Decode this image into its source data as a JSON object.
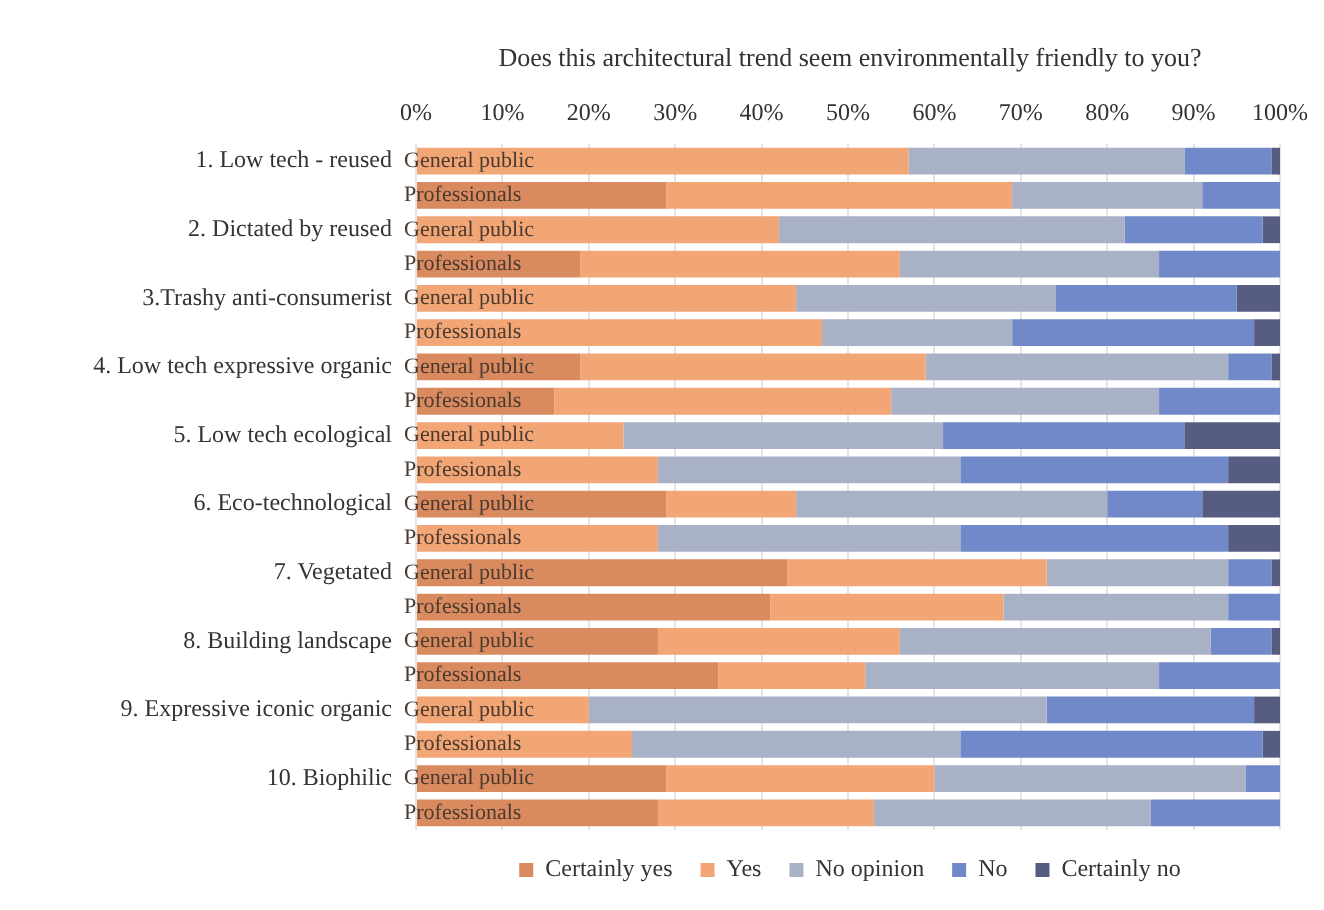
{
  "chart_data": {
    "type": "bar",
    "orientation": "horizontal",
    "stacked": true,
    "title": "Does this architectural trend seem environmentally friendly to you?",
    "categories": [
      "General public",
      "Professionals",
      "General public",
      "Professionals",
      "General public",
      "Professionals",
      "General public",
      "Professionals",
      "General public",
      "Professionals",
      "General public",
      "Professionals",
      "General public",
      "Professionals",
      "General public",
      "Professionals",
      "General public",
      "Professionals",
      "General public",
      "Professionals"
    ],
    "annotations": [
      "1. Low tech - reused",
      "2. Dictated by reused",
      "3.Trashy anti-consumerist",
      "4. Low tech expressive organic",
      "5. Low tech ecological",
      "6. Eco-technological",
      "7. Vegetated",
      "8. Building landscape",
      "9. Expressive iconic organic",
      "10. Biophilic"
    ],
    "series": [
      {
        "name": "Certainly yes",
        "color": "#d98b5f",
        "values": [
          0,
          29,
          0,
          19,
          0,
          0,
          19,
          16,
          0,
          0,
          29,
          0,
          43,
          41,
          28,
          35,
          0,
          0,
          29,
          28
        ]
      },
      {
        "name": "Yes",
        "color": "#f2a675",
        "values": [
          57,
          40,
          42,
          37,
          44,
          47,
          40,
          39,
          24,
          28,
          15,
          28,
          30,
          27,
          28,
          17,
          20,
          25,
          31,
          25
        ]
      },
      {
        "name": "No opinion",
        "color": "#a9b1c6",
        "values": [
          32,
          22,
          40,
          30,
          30,
          22,
          35,
          31,
          37,
          35,
          36,
          35,
          21,
          26,
          36,
          34,
          53,
          38,
          36,
          32
        ]
      },
      {
        "name": "No",
        "color": "#7189c8",
        "values": [
          10,
          9,
          16,
          14,
          21,
          28,
          5,
          14,
          28,
          31,
          11,
          31,
          5,
          6,
          7,
          14,
          24,
          35,
          4,
          15
        ]
      },
      {
        "name": "Certainly no",
        "color": "#575d80",
        "values": [
          1,
          0,
          2,
          0,
          5,
          3,
          1,
          0,
          11,
          6,
          9,
          6,
          1,
          0,
          1,
          0,
          3,
          2,
          0,
          0
        ]
      }
    ],
    "xlim": [
      0,
      100
    ],
    "xticks": [
      {
        "value": 0,
        "label": "0%"
      },
      {
        "value": 10,
        "label": "10%"
      },
      {
        "value": 20,
        "label": "20%"
      },
      {
        "value": 30,
        "label": "30%"
      },
      {
        "value": 40,
        "label": "40%"
      },
      {
        "value": 50,
        "label": "50%"
      },
      {
        "value": 60,
        "label": "60%"
      },
      {
        "value": 70,
        "label": "70%"
      },
      {
        "value": 80,
        "label": "80%"
      },
      {
        "value": 90,
        "label": "90%"
      },
      {
        "value": 100,
        "label": "100%"
      }
    ],
    "grid": "x",
    "legend": "bottom"
  }
}
